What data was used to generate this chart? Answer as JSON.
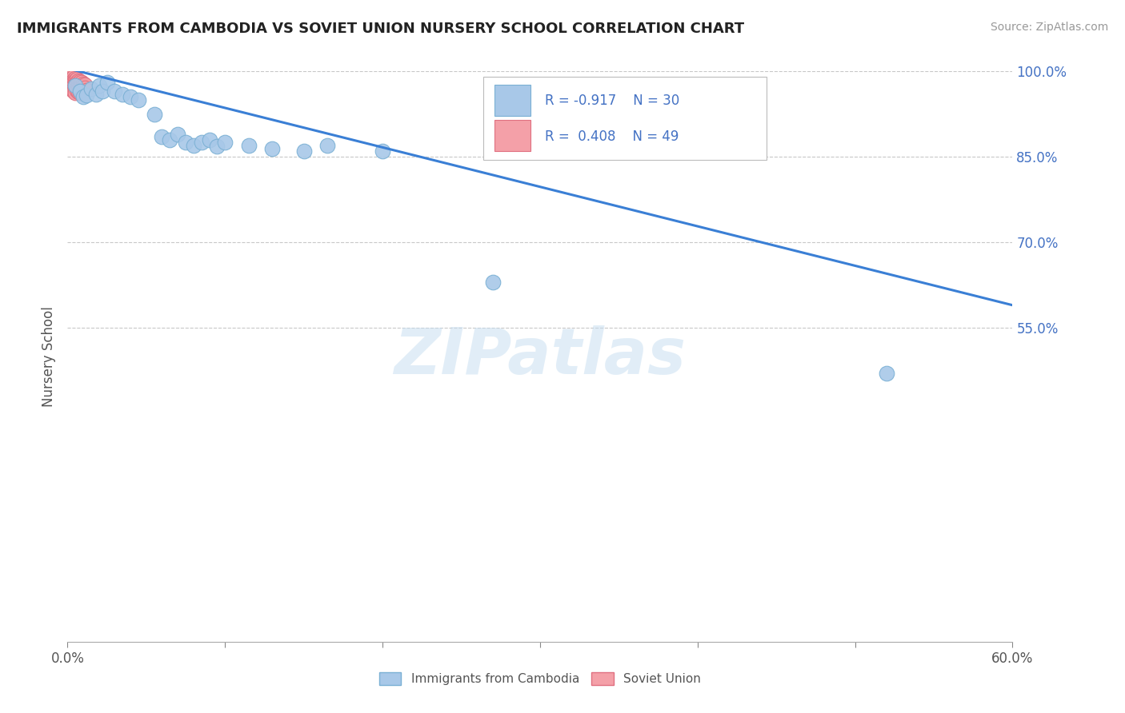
{
  "title": "IMMIGRANTS FROM CAMBODIA VS SOVIET UNION NURSERY SCHOOL CORRELATION CHART",
  "source": "Source: ZipAtlas.com",
  "ylabel": "Nursery School",
  "legend_r1": "R = -0.917",
  "legend_n1": "N = 30",
  "legend_r2": "R = 0.408",
  "legend_n2": "N = 49",
  "watermark": "ZIPatlas",
  "xlim": [
    0.0,
    0.6
  ],
  "ylim": [
    0.0,
    1.0
  ],
  "yticks": [
    0.55,
    0.7,
    0.85,
    1.0
  ],
  "ytick_labels": [
    "55.0%",
    "70.0%",
    "85.0%",
    "100.0%"
  ],
  "xtick_positions": [
    0.0,
    0.1,
    0.2,
    0.3,
    0.4,
    0.5,
    0.6
  ],
  "blue_color": "#a8c8e8",
  "blue_edge_color": "#7ab0d4",
  "pink_color": "#f4a0a8",
  "pink_edge_color": "#e07080",
  "line_color": "#3a7fd5",
  "tick_color": "#4472c4",
  "background_color": "#ffffff",
  "grid_color": "#c8c8c8",
  "cambodia_x": [
    0.005,
    0.008,
    0.01,
    0.012,
    0.015,
    0.018,
    0.02,
    0.022,
    0.025,
    0.03,
    0.035,
    0.04,
    0.045,
    0.055,
    0.06,
    0.065,
    0.07,
    0.075,
    0.08,
    0.085,
    0.09,
    0.095,
    0.1,
    0.115,
    0.13,
    0.15,
    0.165,
    0.2,
    0.27,
    0.52
  ],
  "cambodia_y": [
    0.975,
    0.965,
    0.955,
    0.958,
    0.97,
    0.96,
    0.975,
    0.965,
    0.98,
    0.965,
    0.96,
    0.955,
    0.95,
    0.925,
    0.885,
    0.88,
    0.89,
    0.875,
    0.87,
    0.875,
    0.88,
    0.868,
    0.875,
    0.87,
    0.865,
    0.86,
    0.87,
    0.86,
    0.63,
    0.47
  ],
  "soviet_x": [
    0.001,
    0.001,
    0.002,
    0.002,
    0.002,
    0.003,
    0.003,
    0.003,
    0.003,
    0.003,
    0.003,
    0.004,
    0.004,
    0.004,
    0.004,
    0.004,
    0.004,
    0.005,
    0.005,
    0.005,
    0.005,
    0.005,
    0.005,
    0.006,
    0.006,
    0.006,
    0.006,
    0.006,
    0.007,
    0.007,
    0.007,
    0.007,
    0.007,
    0.008,
    0.008,
    0.008,
    0.008,
    0.008,
    0.009,
    0.009,
    0.009,
    0.009,
    0.01,
    0.01,
    0.01,
    0.01,
    0.011,
    0.011,
    0.012
  ],
  "soviet_y": [
    0.99,
    0.985,
    0.988,
    0.983,
    0.978,
    0.992,
    0.987,
    0.982,
    0.977,
    0.972,
    0.968,
    0.99,
    0.985,
    0.98,
    0.975,
    0.97,
    0.965,
    0.988,
    0.983,
    0.978,
    0.973,
    0.968,
    0.963,
    0.986,
    0.981,
    0.976,
    0.971,
    0.966,
    0.984,
    0.979,
    0.974,
    0.969,
    0.964,
    0.982,
    0.977,
    0.972,
    0.967,
    0.962,
    0.98,
    0.975,
    0.97,
    0.965,
    0.978,
    0.973,
    0.968,
    0.963,
    0.976,
    0.971,
    0.966
  ],
  "trendline_x": [
    0.0,
    0.6
  ],
  "trendline_y": [
    1.005,
    0.59
  ]
}
